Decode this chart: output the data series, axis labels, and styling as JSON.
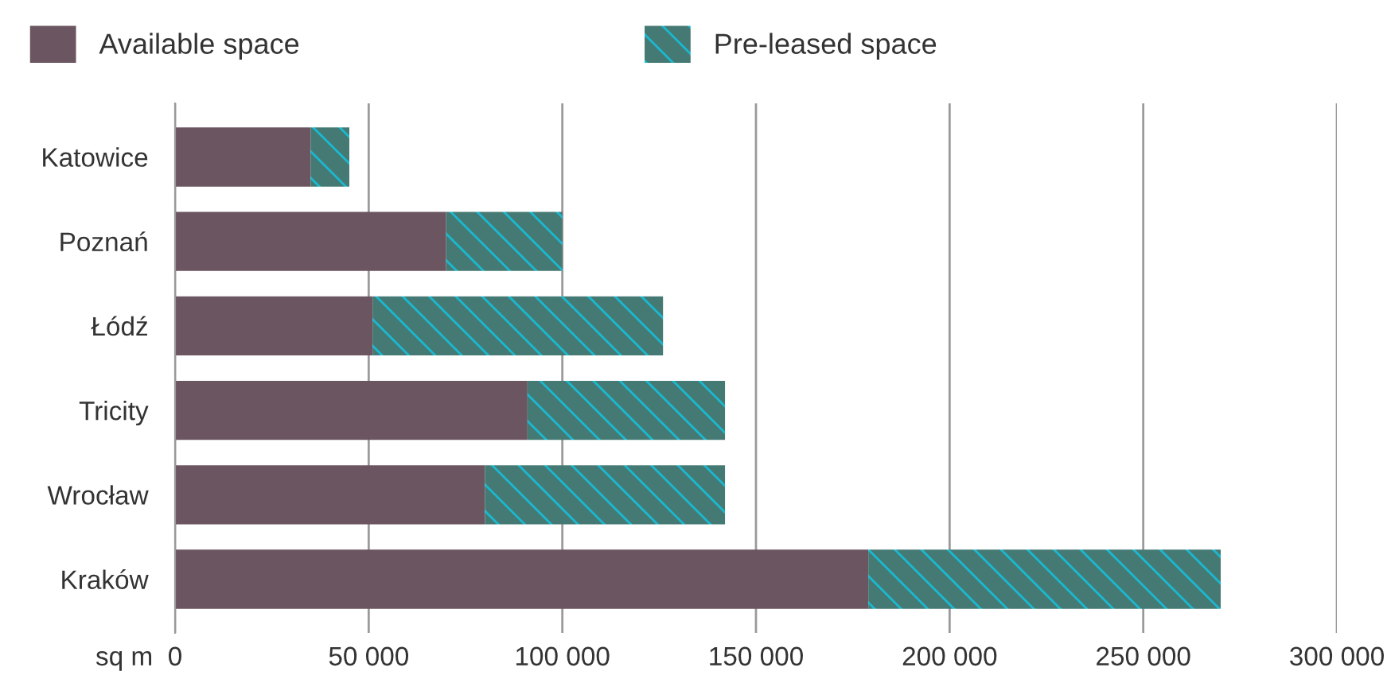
{
  "chart_data": {
    "type": "bar",
    "orientation": "horizontal",
    "stacked": true,
    "xlabel": "sq m",
    "categories": [
      "Katowice",
      "Poznań",
      "Łódź",
      "Tricity",
      "Wrocław",
      "Kraków"
    ],
    "series": [
      {
        "name": "Available space",
        "color": "#6b5560",
        "values": [
          35000,
          70000,
          51000,
          91000,
          80000,
          179000
        ]
      },
      {
        "name": "Pre-leased space",
        "color": "#457a74",
        "values": [
          10000,
          30000,
          75000,
          51000,
          62000,
          91000
        ]
      }
    ],
    "xlim": [
      0,
      300000
    ],
    "xticks": [
      0,
      {
        "value": 50000,
        "label": "50 000"
      },
      {
        "value": 100000,
        "label": "100 000"
      },
      {
        "value": 150000,
        "label": "150 000"
      },
      {
        "value": 200000,
        "label": "200 000"
      },
      {
        "value": 250000,
        "label": "250 000"
      },
      {
        "value": 300000,
        "label": "300 000"
      }
    ],
    "grid": "x",
    "legend": "top"
  }
}
